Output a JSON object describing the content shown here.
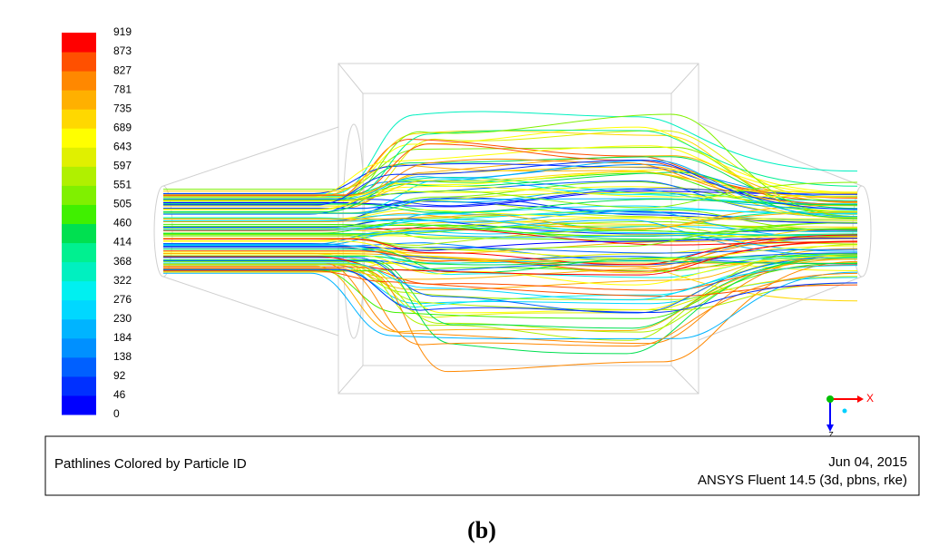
{
  "colorbar": {
    "labels": [
      0,
      46,
      92,
      138,
      184,
      230,
      276,
      322,
      368,
      414,
      460,
      505,
      551,
      597,
      643,
      689,
      735,
      781,
      827,
      873,
      919
    ],
    "colors": [
      "#0000ff",
      "#0030ff",
      "#0060ff",
      "#0090ff",
      "#00b4ff",
      "#00d8ff",
      "#00f0f0",
      "#00f0c0",
      "#00f090",
      "#00e050",
      "#40f000",
      "#80f000",
      "#b0f000",
      "#e0f000",
      "#ffff00",
      "#ffd800",
      "#ffb000",
      "#ff8800",
      "#ff5000",
      "#ff0000"
    ]
  },
  "footer": {
    "caption": "Pathlines Colored by Particle ID",
    "date": "Jun 04, 2015",
    "software": "ANSYS Fluent 14.5 (3d, pbns, rke)"
  },
  "triad": {
    "x_label": "X",
    "z_label": "Z"
  },
  "figure_label": "(b)"
}
